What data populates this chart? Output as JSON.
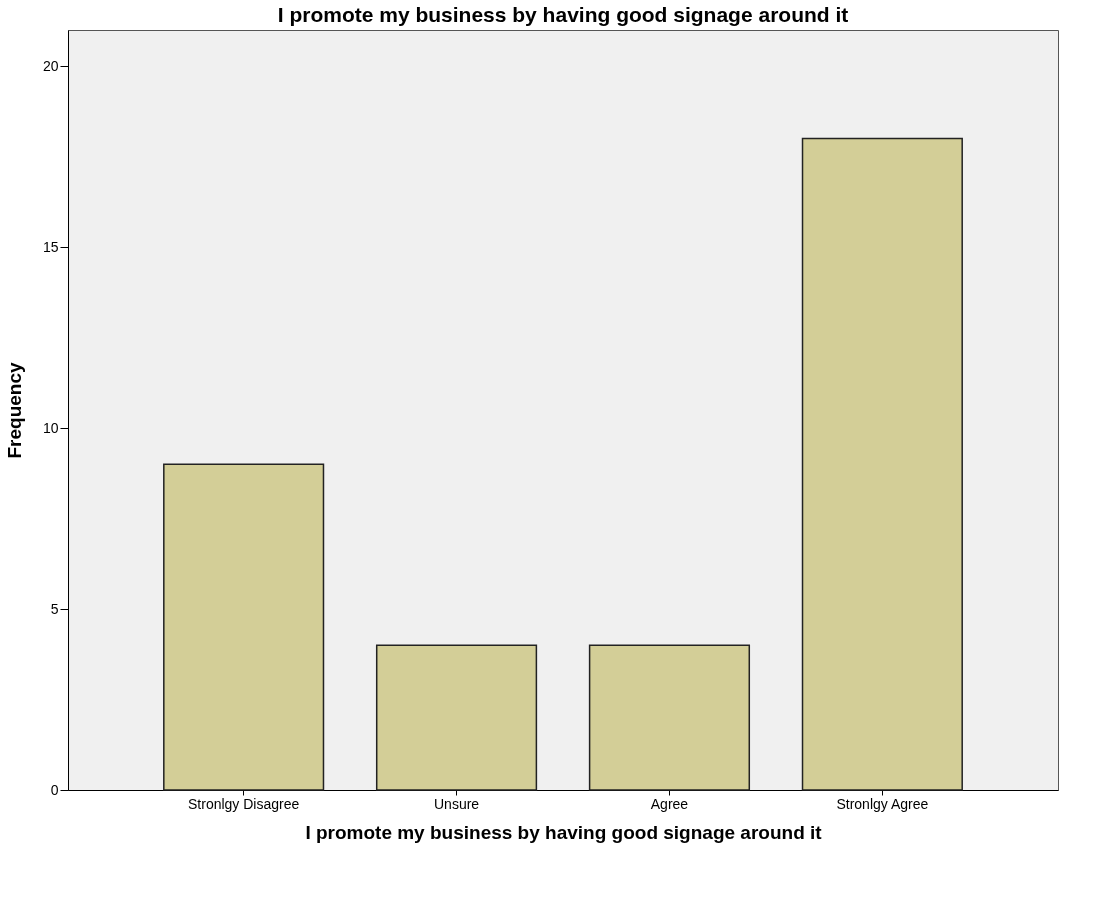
{
  "chart_data": {
    "type": "bar",
    "title": "I promote my business by having good signage around it",
    "xlabel": "I promote my business by having good signage around it",
    "ylabel": "Frequency",
    "categories": [
      "Stronlgy Disagree",
      "Unsure",
      "Agree",
      "Stronlgy Agree"
    ],
    "values": [
      9,
      4,
      4,
      18
    ],
    "color": "#d3ce97",
    "ylim": [
      0,
      21
    ],
    "yticks": [
      0,
      5,
      10,
      15,
      20
    ],
    "grid": false
  }
}
